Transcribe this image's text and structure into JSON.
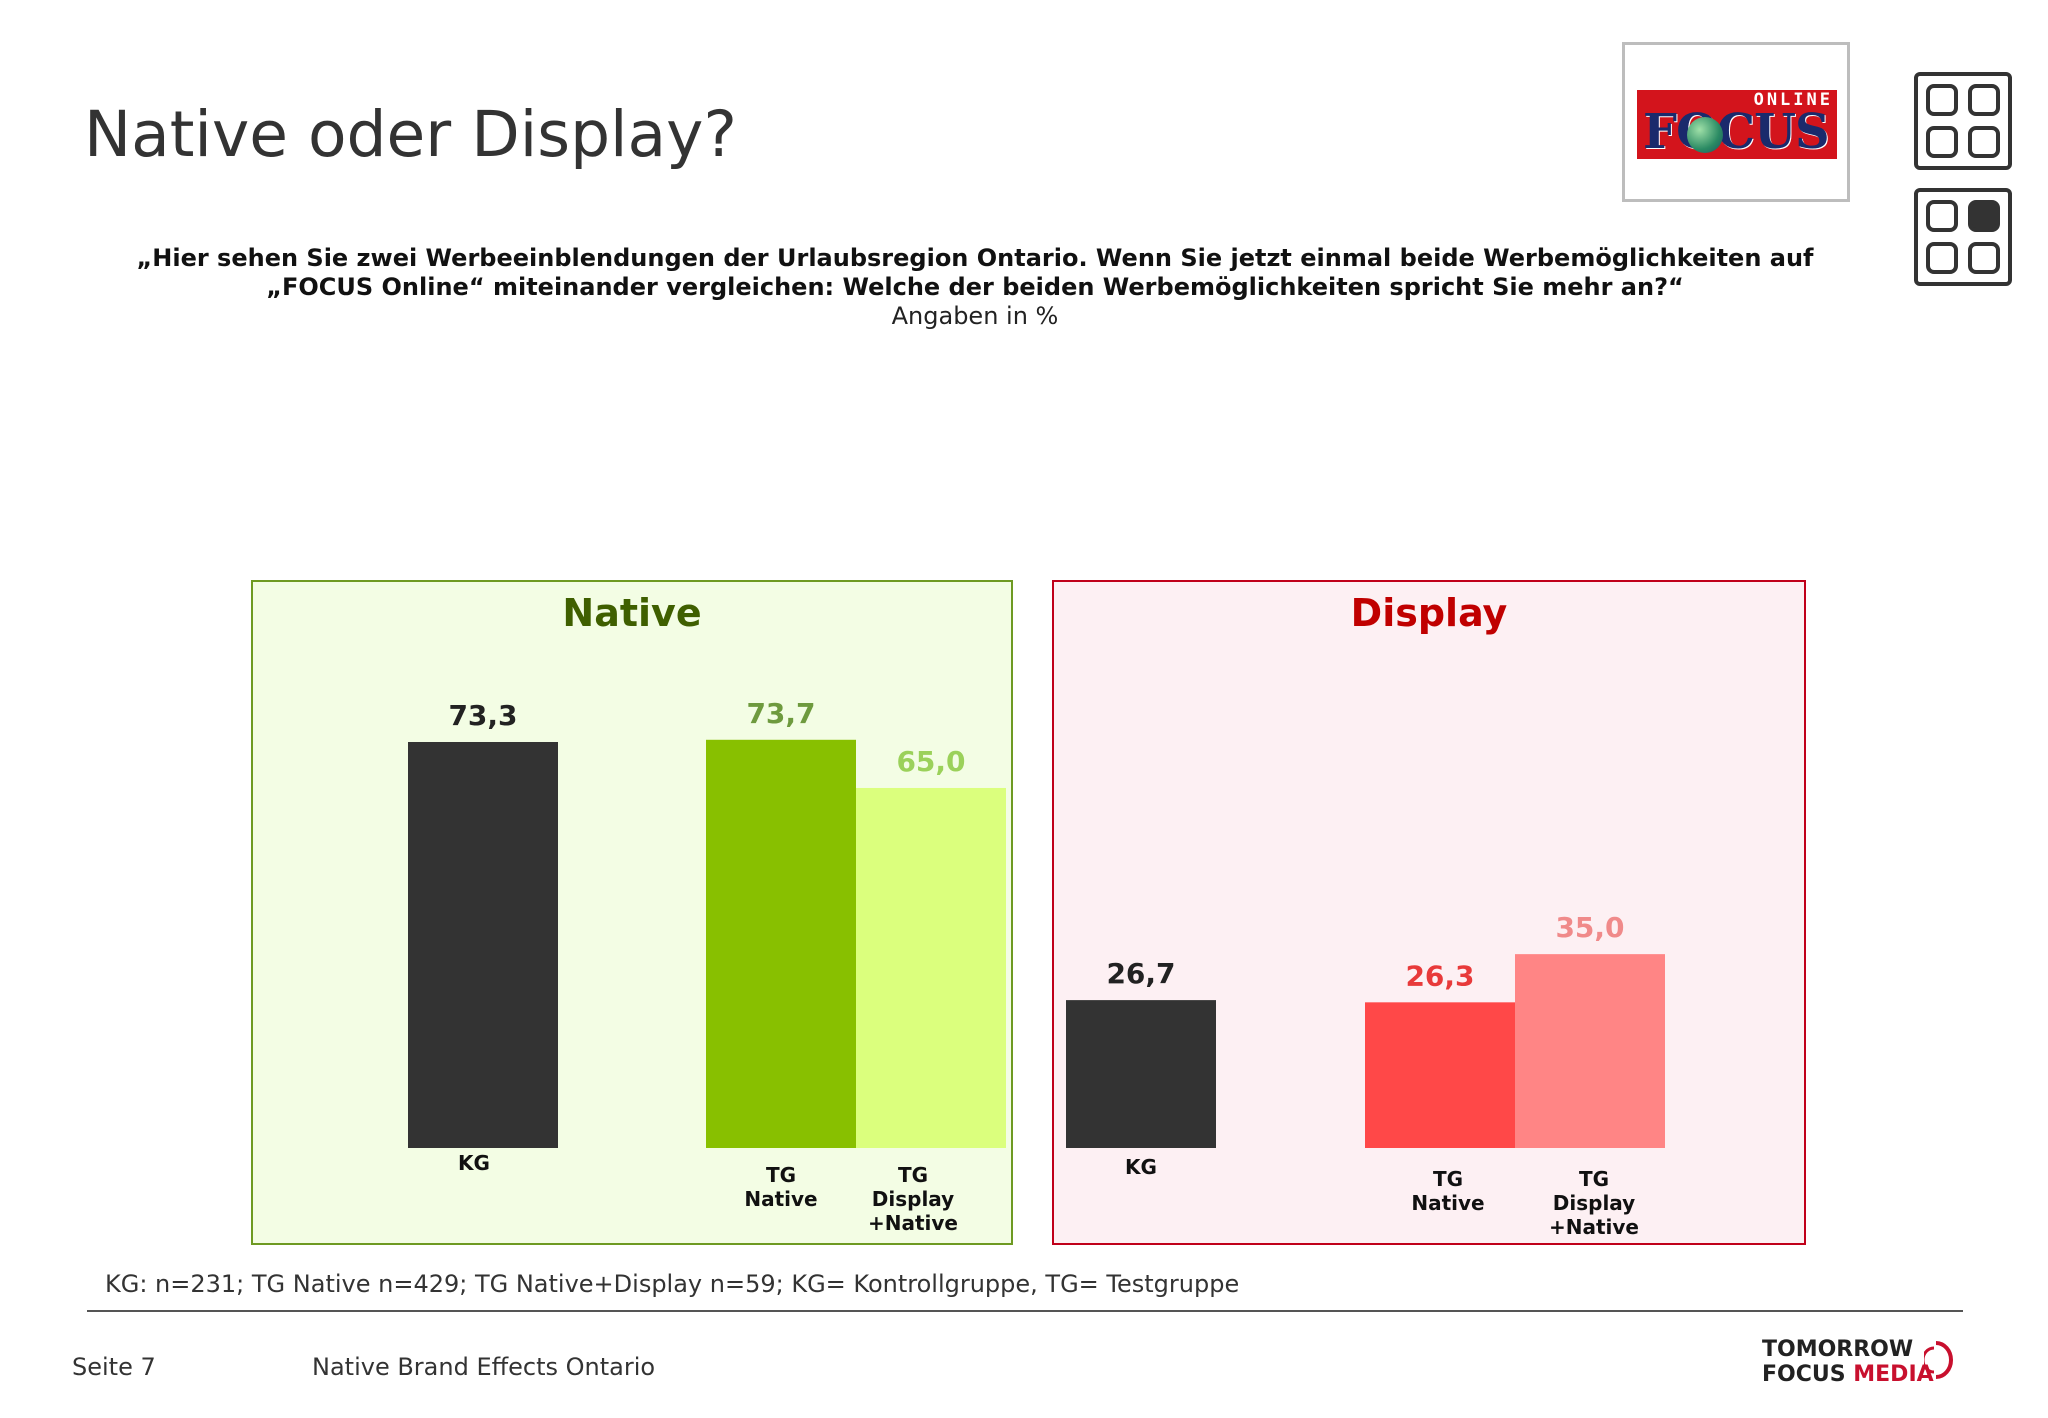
{
  "header": {
    "title": "Native oder Display?",
    "question_line1": "„Hier sehen Sie zwei Werbeeinblendungen der Urlaubsregion Ontario. Wenn Sie jetzt einmal beide Werbemöglichkeiten auf",
    "question_line2": "„FOCUS Online“ miteinander vergleichen: Welche der beiden Werbemöglichkeiten spricht Sie mehr an?“",
    "unit_note": "Angaben in %"
  },
  "logo": {
    "online_text": "ONLINE",
    "focus_text": "FOCUS"
  },
  "icons": [
    "grid-empty-icon",
    "grid-highlight-icon"
  ],
  "chart_data": [
    {
      "type": "bar",
      "title": "Native",
      "title_color": "#3f5f00",
      "panel_fill": "#f3fde4",
      "panel_border": "#6e9a22",
      "categories": [
        "KG",
        "TG Native",
        "TG Display +Native"
      ],
      "category_lines": [
        [
          "KG"
        ],
        [
          "TG",
          "Native"
        ],
        [
          "TG",
          "Display",
          "+Native"
        ]
      ],
      "values": [
        73.3,
        73.7,
        65.0
      ],
      "labels": [
        "73,3",
        "73,7",
        "65,0"
      ],
      "bar_colors": [
        "#333333",
        "#88c000",
        "#dbff7d"
      ],
      "label_colors": [
        "#222222",
        "#6e9a3e",
        "#9bd15a"
      ],
      "ylim": [
        0,
        80
      ]
    },
    {
      "type": "bar",
      "title": "Display",
      "title_color": "#c00000",
      "panel_fill": "#fdf0f3",
      "panel_border": "#c0001a",
      "categories": [
        "KG",
        "TG Native",
        "TG Display +Native"
      ],
      "category_lines": [
        [
          "KG"
        ],
        [
          "TG",
          "Native"
        ],
        [
          "TG",
          "Display",
          "+Native"
        ]
      ],
      "values": [
        26.7,
        26.3,
        35.0
      ],
      "labels": [
        "26,7",
        "26,3",
        "35,0"
      ],
      "bar_colors": [
        "#333333",
        "#ff4848",
        "#ff8585"
      ],
      "label_colors": [
        "#222222",
        "#e83a3a",
        "#f08a8a"
      ],
      "ylim": [
        0,
        80
      ]
    }
  ],
  "footnote": "KG: n=231; TG Native n=429; TG Native+Display n=59; KG= Kontrollgruppe, TG= Testgruppe",
  "footer": {
    "page": "Seite 7",
    "title": "Native Brand Effects Ontario",
    "brand_line1": "TOMORROW",
    "brand_line2a": "FOCUS",
    "brand_line2b": "MEDIA"
  }
}
